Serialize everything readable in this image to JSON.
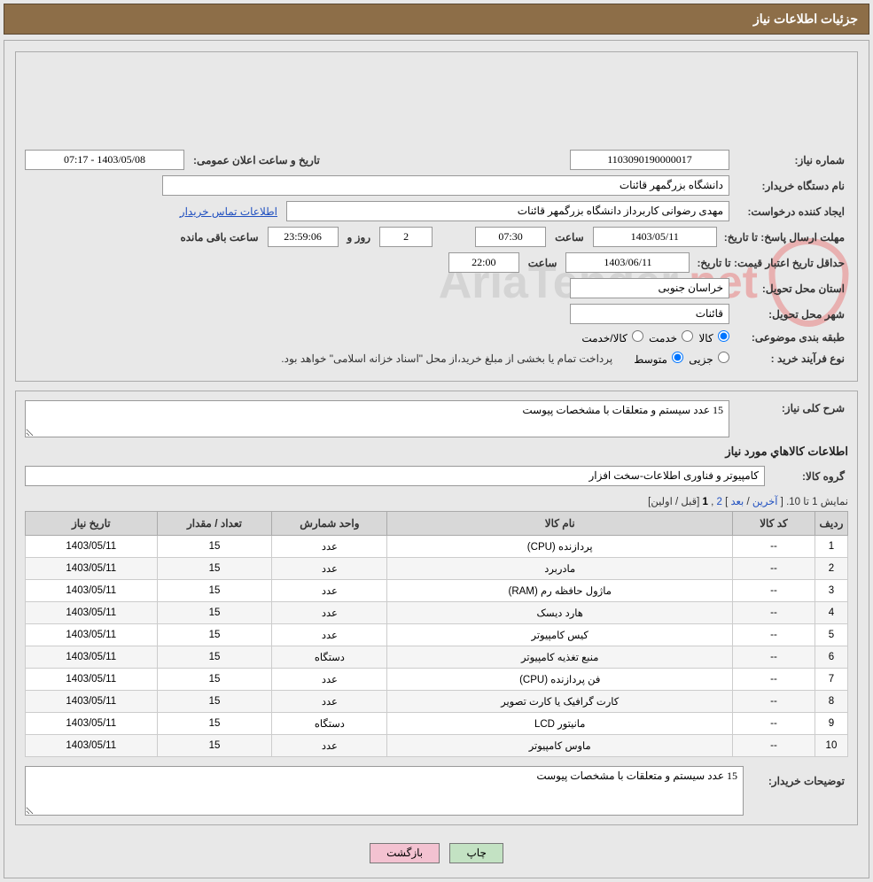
{
  "header": {
    "title": "جزئیات اطلاعات نیاز"
  },
  "need": {
    "number_label": "شماره نیاز:",
    "number": "1103090190000017",
    "announce_label": "تاریخ و ساعت اعلان عمومی:",
    "announce": "1403/05/08 - 07:17",
    "buyer_org_label": "نام دستگاه خریدار:",
    "buyer_org": "دانشگاه بزرگمهر قائنات",
    "requester_label": "ایجاد کننده درخواست:",
    "requester": "مهدی رضوانی کاربرداز دانشگاه بزرگمهر قائنات",
    "contact_link": "اطلاعات تماس خریدار",
    "deadline_label": "مهلت ارسال پاسخ:   تا تاریخ:",
    "deadline_date": "1403/05/11",
    "time_label": "ساعت",
    "deadline_time": "07:30",
    "days": "2",
    "days_label": "روز و",
    "countdown": "23:59:06",
    "remaining_label": "ساعت باقی مانده",
    "price_valid_label": "حداقل تاریخ اعتبار قیمت: تا تاریخ:",
    "price_valid_date": "1403/06/11",
    "price_valid_time": "22:00",
    "province_label": "استان محل تحویل:",
    "province": "خراسان جنوبی",
    "city_label": "شهر محل تحویل:",
    "city": "قائنات",
    "category_label": "طبقه بندی موضوعی:",
    "cat_opts": {
      "goods": "کالا",
      "service": "خدمت",
      "both": "کالا/خدمت"
    },
    "process_label": "نوع فرآیند خرید :",
    "proc_opts": {
      "partial": "جزیی",
      "medium": "متوسط"
    },
    "process_note": "پرداخت تمام یا بخشی از مبلغ خرید،از محل \"اسناد خزانه اسلامی\" خواهد بود."
  },
  "summary": {
    "need_desc_label": "شرح کلی نیاز:",
    "need_desc": "15 عدد سیستم و متعلقات با مشخصات پیوست",
    "items_title": "اطلاعات کالاهاي مورد نياز",
    "group_label": "گروه کالا:",
    "group": "کامپیوتر و فناوری اطلاعات-سخت افزار"
  },
  "pagination": {
    "text_prefix": "نمایش 1 تا 10.",
    "first": "اولین",
    "prev": "قبل",
    "current": "1",
    "page2": "2",
    "next": "بعد",
    "last": "آخرین"
  },
  "table": {
    "columns": [
      "ردیف",
      "کد کالا",
      "نام کالا",
      "واحد شمارش",
      "تعداد / مقدار",
      "تاریخ نیاز"
    ],
    "rows": [
      [
        "1",
        "--",
        "پردازنده (CPU)",
        "عدد",
        "15",
        "1403/05/11"
      ],
      [
        "2",
        "--",
        "مادربرد",
        "عدد",
        "15",
        "1403/05/11"
      ],
      [
        "3",
        "--",
        "ماژول حافظه رم (RAM)",
        "عدد",
        "15",
        "1403/05/11"
      ],
      [
        "4",
        "--",
        "هارد دیسک",
        "عدد",
        "15",
        "1403/05/11"
      ],
      [
        "5",
        "--",
        "کیس کامپیوتر",
        "عدد",
        "15",
        "1403/05/11"
      ],
      [
        "6",
        "--",
        "منبع تغذیه کامپیوتر",
        "دستگاه",
        "15",
        "1403/05/11"
      ],
      [
        "7",
        "--",
        "فن پردازنده (CPU)",
        "عدد",
        "15",
        "1403/05/11"
      ],
      [
        "8",
        "--",
        "کارت گرافیک یا کارت تصویر",
        "عدد",
        "15",
        "1403/05/11"
      ],
      [
        "9",
        "--",
        "مانیتور LCD",
        "دستگاه",
        "15",
        "1403/05/11"
      ],
      [
        "10",
        "--",
        "ماوس کامپیوتر",
        "عدد",
        "15",
        "1403/05/11"
      ]
    ]
  },
  "buyer_notes": {
    "label": "توضیحات خریدار:",
    "text": "15 عدد سیستم و متعلقات با مشخصات پیوست"
  },
  "buttons": {
    "print": "چاپ",
    "back": "بازگشت"
  },
  "watermark": {
    "text1": "AriaTender",
    "text2": ".net"
  }
}
